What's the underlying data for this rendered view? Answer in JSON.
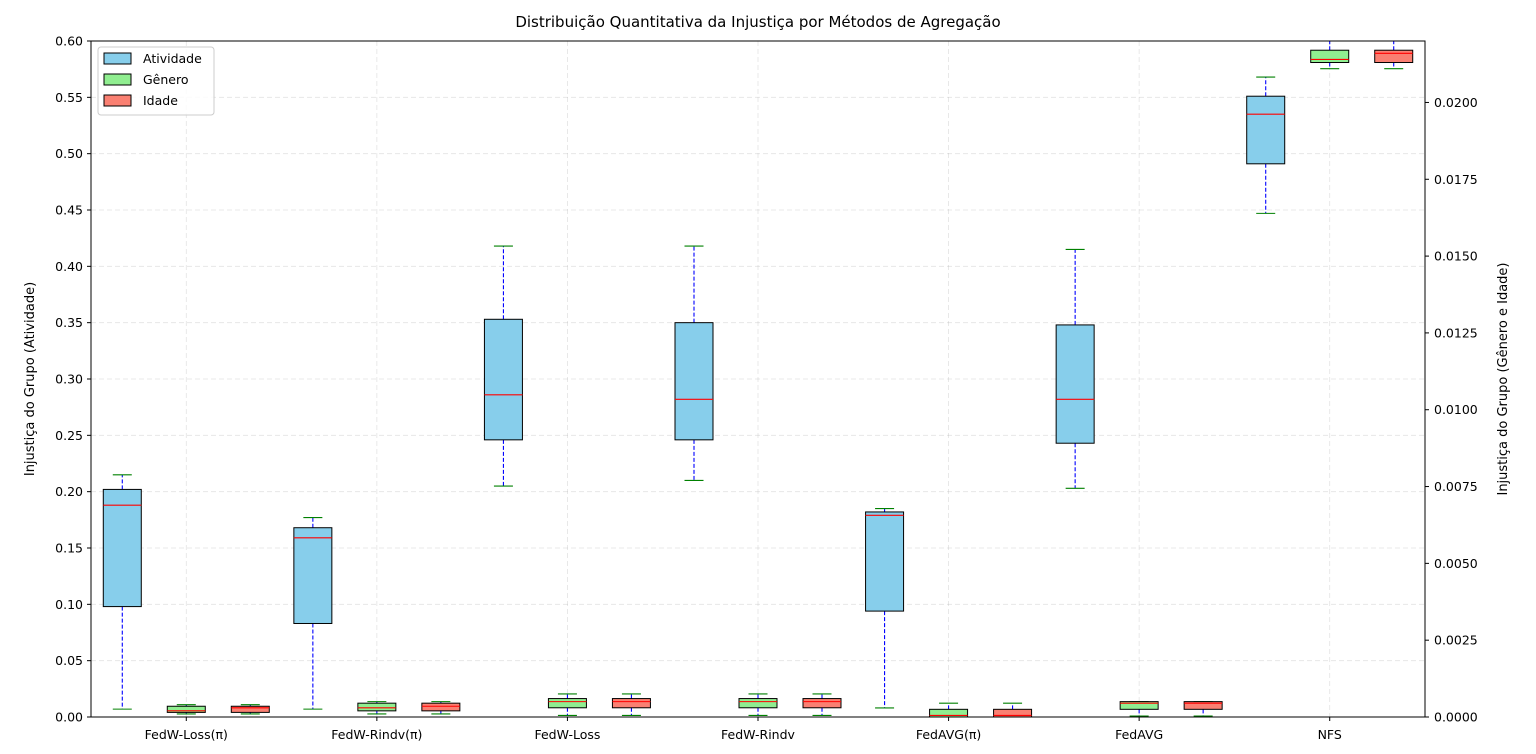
{
  "chart_data": {
    "type": "boxplot",
    "title": "Distribuição Quantitativa da Injustiça por Métodos de Agregação",
    "ylabel_left": "Injustiça do Grupo (Atividade)",
    "ylabel_right": "Injustiça do Grupo (Gênero e Idade)",
    "categories": [
      "FedW-Loss(π)",
      "FedW-Rindv(π)",
      "FedW-Loss",
      "FedW-Rindv",
      "FedAVG(π)",
      "FedAVG",
      "NFS"
    ],
    "ylim_left": [
      0,
      0.6
    ],
    "ylim_right": [
      0,
      0.022
    ],
    "yticks_left": [
      "0.00",
      "0.05",
      "0.10",
      "0.15",
      "0.20",
      "0.25",
      "0.30",
      "0.35",
      "0.40",
      "0.45",
      "0.50",
      "0.55",
      "0.60"
    ],
    "yticks_left_values": [
      0,
      0.05,
      0.1,
      0.15,
      0.2,
      0.25,
      0.3,
      0.35,
      0.4,
      0.45,
      0.5,
      0.55,
      0.6
    ],
    "yticks_right": [
      "0.0000",
      "0.0025",
      "0.0050",
      "0.0075",
      "0.0100",
      "0.0125",
      "0.0150",
      "0.0175",
      "0.0200"
    ],
    "yticks_right_values": [
      0,
      0.0025,
      0.005,
      0.0075,
      0.01,
      0.0125,
      0.015,
      0.0175,
      0.02
    ],
    "grid": true,
    "legend_position": "top-left",
    "series": [
      {
        "name": "Atividade",
        "axis": "left",
        "color": "#87CEEB",
        "boxes": [
          {
            "min": 0.007,
            "q1": 0.098,
            "median": 0.188,
            "q3": 0.202,
            "max": 0.215
          },
          {
            "min": 0.007,
            "q1": 0.083,
            "median": 0.159,
            "q3": 0.168,
            "max": 0.177
          },
          {
            "min": 0.205,
            "q1": 0.246,
            "median": 0.286,
            "q3": 0.353,
            "max": 0.418
          },
          {
            "min": 0.21,
            "q1": 0.246,
            "median": 0.282,
            "q3": 0.35,
            "max": 0.418
          },
          {
            "min": 0.008,
            "q1": 0.094,
            "median": 0.179,
            "q3": 0.182,
            "max": 0.185
          },
          {
            "min": 0.203,
            "q1": 0.243,
            "median": 0.282,
            "q3": 0.348,
            "max": 0.415
          },
          {
            "min": 0.447,
            "q1": 0.491,
            "median": 0.535,
            "q3": 0.551,
            "max": 0.568
          }
        ]
      },
      {
        "name": "Gênero",
        "axis": "right",
        "color": "#90EE90",
        "boxes": [
          {
            "min": 0.0001,
            "q1": 0.00015,
            "median": 0.0002,
            "q3": 0.00035,
            "max": 0.0004
          },
          {
            "min": 0.0001,
            "q1": 0.0002,
            "median": 0.0003,
            "q3": 0.00045,
            "max": 0.0005
          },
          {
            "min": 5e-05,
            "q1": 0.0003,
            "median": 0.0005,
            "q3": 0.0006,
            "max": 0.00075
          },
          {
            "min": 5e-05,
            "q1": 0.0003,
            "median": 0.0005,
            "q3": 0.0006,
            "max": 0.00075
          },
          {
            "min": 0.0,
            "q1": 0.0,
            "median": 5e-05,
            "q3": 0.00025,
            "max": 0.00045
          },
          {
            "min": 3e-05,
            "q1": 0.00025,
            "median": 0.00045,
            "q3": 0.0005,
            "max": 0.0005
          },
          {
            "min": 0.0211,
            "q1": 0.0213,
            "median": 0.0214,
            "q3": 0.0217,
            "max": 0.022
          }
        ]
      },
      {
        "name": "Idade",
        "axis": "right",
        "color": "#FA8072",
        "boxes": [
          {
            "min": 0.0001,
            "q1": 0.00015,
            "median": 0.0003,
            "q3": 0.00035,
            "max": 0.0004
          },
          {
            "min": 0.0001,
            "q1": 0.0002,
            "median": 0.00035,
            "q3": 0.00045,
            "max": 0.0005
          },
          {
            "min": 5e-05,
            "q1": 0.0003,
            "median": 0.0005,
            "q3": 0.0006,
            "max": 0.00075
          },
          {
            "min": 5e-05,
            "q1": 0.0003,
            "median": 0.0005,
            "q3": 0.0006,
            "max": 0.00075
          },
          {
            "min": 0.0,
            "q1": 0.0,
            "median": 5e-05,
            "q3": 0.00025,
            "max": 0.00045
          },
          {
            "min": 3e-05,
            "q1": 0.00025,
            "median": 0.00045,
            "q3": 0.0005,
            "max": 0.0005
          },
          {
            "min": 0.0211,
            "q1": 0.0213,
            "median": 0.0216,
            "q3": 0.0217,
            "max": 0.022
          }
        ]
      }
    ],
    "median_color": "#FF0000",
    "whisker_color": "#0000FF",
    "cap_color": "#008000"
  }
}
